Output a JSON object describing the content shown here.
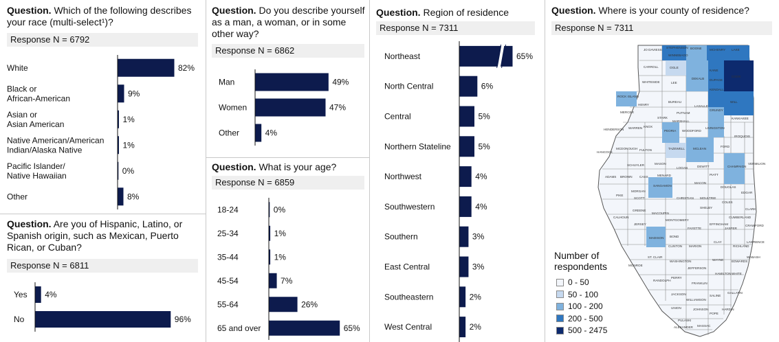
{
  "colors": {
    "bar": "#0d1b4d",
    "axis": "#111111",
    "response_bg": "#efefef",
    "map_bins": [
      "#f3f6fb",
      "#c6d9ef",
      "#7fb2de",
      "#2f77c0",
      "#0d2a6e"
    ]
  },
  "race": {
    "q_prefix": "Question.",
    "q_text": "Which of the following describes your race (multi-select¹)?",
    "response": "Response N = 6792"
  },
  "hispanic": {
    "q_prefix": "Question.",
    "q_text": "Are you of Hispanic, Latino, or Spanish origin, such as Mexican, Puerto Rican, or Cuban?",
    "response": "Response N = 6811"
  },
  "gender": {
    "q_prefix": "Question.",
    "q_text": "Do you describe yourself as a man, a woman, or in some other way?",
    "response": "Response N = 6862"
  },
  "age": {
    "q_prefix": "Question.",
    "q_text": "What is your age?",
    "response": "Response N = 6859"
  },
  "region": {
    "q_prefix": "Question.",
    "q_text": "Region of residence",
    "response": "Response N = 7311"
  },
  "county": {
    "q_prefix": "Question.",
    "q_text": "Where is your county of residence?",
    "response": "Response N = 7311",
    "legend_title": "Number of respondents",
    "legend": [
      "0 - 50",
      "50 - 100",
      "100 - 200",
      "200 - 500",
      "500 - 2475"
    ],
    "labels": [
      "JO DAVIESS",
      "STEPHENSON",
      "WINNEBAGO",
      "BOONE",
      "MCHENRY",
      "LAKE",
      "CARROLL",
      "OGLE",
      "DEKALB",
      "KANE",
      "DUPAGE",
      "COOK",
      "WHITESIDE",
      "LEE",
      "KENDALL",
      "WILL",
      "ROCK ISLAND",
      "HENRY",
      "BUREAU",
      "LASALLE",
      "GRUNDY",
      "KANKAKEE",
      "MERCER",
      "STARK",
      "PUTNAM",
      "MARSHALL",
      "IROQUOIS",
      "HENDERSON",
      "WARREN",
      "KNOX",
      "PEORIA",
      "WOODFORD",
      "LIVINGSTON",
      "HANCOCK",
      "MCDONOUGH",
      "FULTON",
      "TAZEWELL",
      "MCLEAN",
      "FORD",
      "CHAMPAIGN",
      "VERMILION",
      "SCHUYLER",
      "MASON",
      "LOGAN",
      "DEWITT",
      "ADAMS",
      "BROWN",
      "CASS",
      "MENARD",
      "PIATT",
      "PIKE",
      "SCOTT",
      "MORGAN",
      "SANGAMON",
      "MACON",
      "DOUGLAS",
      "EDGAR",
      "CHRISTIAN",
      "MOULTRIE",
      "COLES",
      "GREENE",
      "MACOUPIN",
      "MONTGOMERY",
      "SHELBY",
      "CLARK",
      "CALHOUN",
      "JERSEY",
      "FAYETTE",
      "EFFINGHAM",
      "JASPER",
      "CRAWFORD",
      "MADISON",
      "BOND",
      "CUMBERLAND",
      "CLINTON",
      "MARION",
      "CLAY",
      "RICHLAND",
      "LAWRENCE",
      "ST. CLAIR",
      "WASHINGTON",
      "WAYNE",
      "EDWARDS",
      "WABASH",
      "MONROE",
      "JEFFERSON",
      "RANDOLPH",
      "PERRY",
      "FRANKLIN",
      "HAMILTON",
      "WHITE",
      "JACKSON",
      "WILLIAMSON",
      "SALINE",
      "UNION",
      "JOHNSON",
      "POPE",
      "HARDIN",
      "ALEXANDER",
      "PULASKI",
      "MASSAC",
      "GALLATIN"
    ]
  },
  "chart_data": [
    {
      "type": "bar",
      "title": "Which of the following describes your race (multi-select¹)?",
      "categories": [
        "White",
        "Black or African-American",
        "Asian or Asian American",
        "Native American/American Indian/Alaska Native",
        "Pacific Islander/ Native Hawaiian",
        "Other"
      ],
      "category_lines": [
        [
          "White"
        ],
        [
          "Black or",
          "African-American"
        ],
        [
          "Asian or",
          "Asian American"
        ],
        [
          "Native American/American",
          "Indian/Alaska Native"
        ],
        [
          "Pacific Islander/",
          "Native Hawaiian"
        ],
        [
          "Other"
        ]
      ],
      "values": [
        82,
        9,
        1,
        1,
        0,
        8
      ],
      "value_labels": [
        "82%",
        "9%",
        "1%",
        "1%",
        "0%",
        "8%"
      ],
      "unit": "%"
    },
    {
      "type": "bar",
      "title": "Are you of Hispanic, Latino, or Spanish origin, such as Mexican, Puerto Rican, or Cuban?",
      "categories": [
        "Yes",
        "No"
      ],
      "category_lines": [
        [
          "Yes"
        ],
        [
          "No"
        ]
      ],
      "values": [
        4,
        96
      ],
      "value_labels": [
        "4%",
        "96%"
      ],
      "unit": "%"
    },
    {
      "type": "bar",
      "title": "Do you describe yourself as a man, a woman, or in some other way?",
      "categories": [
        "Man",
        "Women",
        "Other"
      ],
      "category_lines": [
        [
          "Man"
        ],
        [
          "Women"
        ],
        [
          "Other"
        ]
      ],
      "values": [
        49,
        47,
        4
      ],
      "value_labels": [
        "49%",
        "47%",
        "4%"
      ],
      "unit": "%"
    },
    {
      "type": "bar",
      "title": "What is your age?",
      "categories": [
        "18-24",
        "25-34",
        "35-44",
        "45-54",
        "55-64",
        "65 and over"
      ],
      "category_lines": [
        [
          "18-24"
        ],
        [
          "25-34"
        ],
        [
          "35-44"
        ],
        [
          "45-54"
        ],
        [
          "55-64"
        ],
        [
          "65 and over"
        ]
      ],
      "values": [
        0,
        1,
        1,
        7,
        26,
        65
      ],
      "value_labels": [
        "0%",
        "1%",
        "1%",
        "7%",
        "26%",
        "65%"
      ],
      "unit": "%"
    },
    {
      "type": "bar",
      "title": "Region of residence",
      "categories": [
        "Northeast",
        "North Central",
        "Central",
        "Northern Stateline",
        "Northwest",
        "Southwestern",
        "Southern",
        "East Central",
        "Southeastern",
        "West Central"
      ],
      "category_lines": [
        [
          "Northeast"
        ],
        [
          "North Central"
        ],
        [
          "Central"
        ],
        [
          "Northern Stateline"
        ],
        [
          "Northwest"
        ],
        [
          "Southwestern"
        ],
        [
          "Southern"
        ],
        [
          "East Central"
        ],
        [
          "Southeastern"
        ],
        [
          "West Central"
        ]
      ],
      "values": [
        65,
        6,
        5,
        5,
        4,
        4,
        3,
        3,
        2,
        2
      ],
      "value_labels": [
        "65%",
        "6%",
        "5%",
        "5%",
        "4%",
        "4%",
        "3%",
        "3%",
        "2%",
        "2%"
      ],
      "axis_break": true,
      "unit": "%"
    }
  ]
}
